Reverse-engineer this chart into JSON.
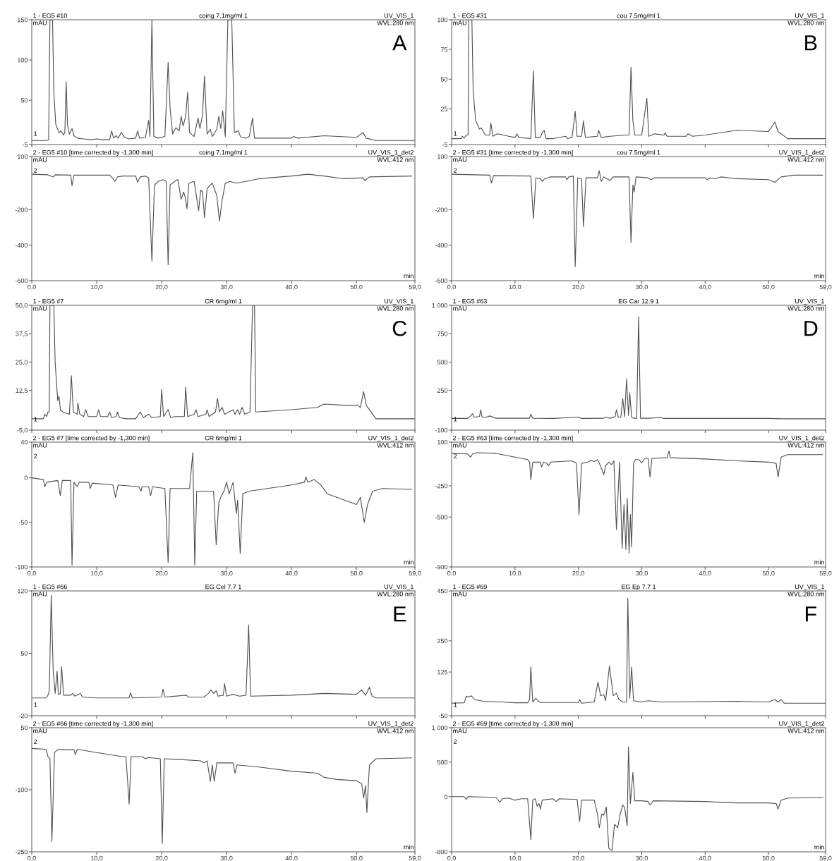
{
  "chart_data": [
    {
      "type": "line",
      "title": "1 - EG5 #10",
      "subtitle": "coing 7.1mg/ml 1",
      "ylabel": "mAU",
      "annotations": [
        "UV_VIS_1",
        "WVL:280 nm",
        "1",
        "A"
      ],
      "tick_labels": "y",
      "xlim": [
        0,
        59
      ],
      "xticks": [
        {
          "value": 0,
          "label": null
        },
        {
          "value": 10,
          "label": null
        },
        {
          "value": 20,
          "label": null
        },
        {
          "value": 30,
          "label": null
        },
        {
          "value": 40,
          "label": null
        },
        {
          "value": 50,
          "label": null
        },
        {
          "value": 59,
          "label": null
        }
      ],
      "ylim": [
        -5,
        150
      ],
      "yticks": [
        -5,
        50,
        100,
        150
      ],
      "series": [
        {
          "color": "#505050",
          "x": [
            0,
            2.3,
            2.6,
            2.8,
            3.2,
            3.4,
            3.7,
            4.2,
            4.5,
            4.9,
            5.1,
            5.3,
            5.5,
            5.8,
            6.2,
            6.5,
            7,
            8,
            9,
            10,
            11,
            12,
            12.3,
            12.6,
            13,
            13.3,
            13.8,
            14.3,
            15,
            16,
            16.3,
            16.6,
            17.5,
            18,
            18.2,
            18.5,
            18.8,
            19.5,
            20.5,
            21,
            21.3,
            21.7,
            22.2,
            22.7,
            23,
            23.3,
            23.7,
            24,
            24.3,
            25,
            25.6,
            25.9,
            26.3,
            26.6,
            27,
            27.5,
            27.8,
            28.5,
            28.8,
            29.1,
            29.4,
            29.8,
            30.2,
            30.8,
            31.2,
            31.8,
            32.2,
            33,
            33.5,
            34,
            34.3,
            36,
            40,
            40.3,
            41,
            45,
            50,
            51,
            51.5,
            53,
            59
          ],
          "values": [
            0,
            0,
            1,
            150,
            150,
            60,
            20,
            10,
            12,
            7,
            10,
            73,
            20,
            8,
            15,
            6,
            3,
            2,
            1,
            2,
            1,
            1,
            12,
            3,
            6,
            3,
            10,
            4,
            2,
            3,
            12,
            3,
            4,
            25,
            5,
            150,
            5,
            3,
            5,
            97,
            40,
            8,
            16,
            12,
            30,
            18,
            30,
            60,
            10,
            5,
            28,
            15,
            32,
            80,
            8,
            14,
            5,
            14,
            30,
            15,
            37,
            5,
            150,
            150,
            10,
            12,
            4,
            3,
            5,
            28,
            3,
            3,
            3,
            5,
            3,
            6,
            4,
            10,
            3,
            0,
            0
          ]
        }
      ]
    },
    {
      "type": "line",
      "title": "2 - EG5 #10 [time corrected by -1,300 min]",
      "subtitle": "coing 7.1mg/ml 1",
      "ylabel": "mAU",
      "xlabel": "min",
      "annotations": [
        "UV_VIS_1_det2",
        "WVL:412 nm",
        "2"
      ],
      "xlim": [
        0,
        59
      ],
      "xticks": [
        {
          "value": 0,
          "label": "0,0"
        },
        {
          "value": 10,
          "label": "10,0"
        },
        {
          "value": 20,
          "label": "20,0"
        },
        {
          "value": 30,
          "label": "30,0"
        },
        {
          "value": 40,
          "label": "40,0"
        },
        {
          "value": 50,
          "label": "50,0"
        },
        {
          "value": 59,
          "label": "59,0"
        }
      ],
      "ylim": [
        -600,
        100
      ],
      "yticks": [
        -600,
        -400,
        -200,
        100
      ],
      "series": [
        {
          "color": "#505050",
          "x": [
            0,
            2.5,
            3.3,
            3.6,
            6,
            6.2,
            6.5,
            12,
            12.5,
            12.8,
            13.2,
            14,
            16,
            16.3,
            16.7,
            17.5,
            18,
            18.5,
            18.9,
            19.5,
            20.2,
            20.7,
            21,
            21.3,
            22,
            22.5,
            23,
            23.4,
            23.6,
            23.9,
            24.2,
            25,
            25.7,
            26,
            26.3,
            26.6,
            27,
            27.8,
            28.5,
            28.9,
            29.3,
            29.8,
            30.5,
            31.5,
            33,
            35,
            40,
            42.5,
            45,
            48,
            51,
            51.3,
            52,
            58.5
          ],
          "values": [
            0,
            -3,
            -15,
            -3,
            -5,
            -65,
            -5,
            -5,
            -25,
            -40,
            -15,
            -10,
            -10,
            -45,
            -15,
            -10,
            -20,
            -490,
            -60,
            -40,
            -30,
            -40,
            -510,
            -60,
            -40,
            -30,
            -140,
            -100,
            -125,
            -195,
            -50,
            -40,
            -205,
            -90,
            -100,
            -245,
            -80,
            -50,
            -120,
            -265,
            -150,
            -50,
            -40,
            -50,
            -40,
            -25,
            -10,
            0,
            -10,
            -25,
            -20,
            -35,
            -15,
            -10
          ]
        }
      ]
    },
    {
      "type": "line",
      "title": "1 - EG5 #31",
      "subtitle": "cou 7.5mg/ml 1",
      "ylabel": "mAU",
      "annotations": [
        "UV_VIS_1",
        "WVL:280 nm",
        "1",
        "B"
      ],
      "tick_labels": "y",
      "xlim": [
        0,
        59
      ],
      "xticks": [
        {
          "value": 0,
          "label": null
        },
        {
          "value": 10,
          "label": null
        },
        {
          "value": 20,
          "label": null
        },
        {
          "value": 30,
          "label": null
        },
        {
          "value": 40,
          "label": null
        },
        {
          "value": 50,
          "label": null
        },
        {
          "value": 59,
          "label": null
        }
      ],
      "ylim": [
        -5,
        100
      ],
      "yticks": [
        -5,
        25,
        50,
        75,
        100
      ],
      "series": [
        {
          "color": "#505050",
          "x": [
            0,
            1.5,
            1.7,
            2,
            2.3,
            2.6,
            2.7,
            3.2,
            3.4,
            3.8,
            4.4,
            4.7,
            5.3,
            6,
            6.2,
            6.5,
            7.2,
            8.2,
            9,
            10,
            10.3,
            10.6,
            12.5,
            12.9,
            13.2,
            14,
            14.3,
            14.6,
            14.9,
            16,
            18,
            18.3,
            19,
            19.5,
            19.8,
            20.5,
            20.8,
            21.1,
            23,
            23.2,
            23.6,
            25,
            27.5,
            28,
            28.3,
            28.6,
            28.9,
            30,
            30.8,
            31.1,
            32,
            33.5,
            33.7,
            34,
            37,
            37.3,
            38,
            40,
            45,
            50,
            51,
            51.5,
            53,
            59
          ],
          "values": [
            0,
            0,
            2,
            0.5,
            3,
            3,
            100,
            100,
            40,
            15,
            8,
            9,
            3,
            3,
            13,
            2,
            4,
            3,
            2,
            1,
            4,
            1,
            0,
            57,
            1,
            1,
            5,
            7,
            0,
            0,
            2,
            0,
            1,
            23,
            2,
            2,
            15,
            1,
            2,
            7,
            1,
            2,
            3,
            3,
            60,
            15,
            3,
            3,
            34,
            2,
            4,
            3,
            5,
            2,
            2,
            4,
            2,
            3,
            7,
            6,
            14,
            6,
            0,
            0
          ]
        }
      ]
    },
    {
      "type": "line",
      "title": "2 - EG5 #31 [time corrected by -1,300 min]",
      "subtitle": "cou 7.5mg/ml 1",
      "ylabel": "mAU",
      "xlabel": "min",
      "annotations": [
        "UV_VIS_1_det2",
        "WVL:412 nm",
        "2"
      ],
      "xlim": [
        0,
        59
      ],
      "xticks": [
        {
          "value": 0,
          "label": "0,0"
        },
        {
          "value": 10,
          "label": "10,0"
        },
        {
          "value": 20,
          "label": "20,0"
        },
        {
          "value": 30,
          "label": "30,0"
        },
        {
          "value": 40,
          "label": "40,0"
        },
        {
          "value": 50,
          "label": "50,0"
        },
        {
          "value": 59,
          "label": "59,0"
        }
      ],
      "ylim": [
        -600,
        100
      ],
      "yticks": [
        -600,
        -400,
        -200,
        100
      ],
      "series": [
        {
          "color": "#505050",
          "x": [
            0,
            6,
            6.3,
            6.6,
            12.5,
            12.9,
            13.3,
            14,
            14.3,
            14.7,
            15.5,
            18,
            18.2,
            18.5,
            19.2,
            19.5,
            19.9,
            20.5,
            20.8,
            21.2,
            23,
            23.3,
            23.6,
            24,
            25,
            25.5,
            28,
            28.3,
            28.6,
            28.8,
            29.1,
            31,
            31.5,
            32,
            40,
            40.3,
            40.8,
            41.5,
            42.5,
            45,
            50,
            51,
            52,
            54,
            58.5
          ],
          "values": [
            0,
            -5,
            -50,
            -8,
            -10,
            -250,
            -20,
            -25,
            -40,
            -25,
            -15,
            -15,
            -30,
            -15,
            -10,
            -520,
            -20,
            -25,
            -295,
            -20,
            -20,
            20,
            -40,
            -15,
            -35,
            -15,
            -15,
            -385,
            -60,
            -100,
            -15,
            -20,
            -30,
            -20,
            -20,
            -30,
            -20,
            -25,
            -15,
            -25,
            -30,
            -45,
            -15,
            -5,
            -5
          ]
        }
      ]
    },
    {
      "type": "line",
      "title": "1 - EG5 #7",
      "subtitle": "CR 6mg/ml 1",
      "ylabel": "mAU",
      "annotations": [
        "UV_VIS_1",
        "WVL:280 nm",
        "1",
        "C"
      ],
      "tick_labels": "y",
      "xlim": [
        0,
        59
      ],
      "xticks": [
        {
          "value": 0,
          "label": null
        },
        {
          "value": 10,
          "label": null
        },
        {
          "value": 20,
          "label": null
        },
        {
          "value": 30,
          "label": null
        },
        {
          "value": 40,
          "label": null
        },
        {
          "value": 50,
          "label": null
        },
        {
          "value": 59,
          "label": null
        }
      ],
      "ylim": [
        -5,
        50
      ],
      "yticks": [
        {
          "value": -5,
          "label": "-5,0"
        },
        {
          "value": 12.5,
          "label": "12,5"
        },
        {
          "value": 25,
          "label": "25,0"
        },
        {
          "value": 37.5,
          "label": "37,5"
        },
        {
          "value": 50,
          "label": "50,0"
        }
      ],
      "series": [
        {
          "color": "#505050",
          "x": [
            0,
            1.8,
            2,
            2.3,
            2.5,
            2.7,
            2.8,
            3.4,
            3.6,
            4,
            4.2,
            4.4,
            4.8,
            5.8,
            6.1,
            6.4,
            7,
            7.1,
            7.4,
            8,
            8.3,
            8.7,
            10,
            10.3,
            10.6,
            11.7,
            12,
            12.3,
            13,
            13.2,
            13.5,
            14.5,
            16,
            16.7,
            17.2,
            18,
            18.5,
            19.8,
            20,
            20.3,
            21,
            21.4,
            22,
            23.5,
            23.7,
            24,
            25,
            25.3,
            25.6,
            26.8,
            27,
            27.3,
            28.3,
            28.6,
            28.9,
            29.3,
            29.7,
            31,
            31.3,
            31.7,
            32,
            32.4,
            32.8,
            33.6,
            34,
            34.3,
            34.5,
            40,
            44,
            45,
            48,
            50.2,
            50.6,
            51.1,
            51.5,
            53,
            59
          ],
          "values": [
            0,
            0,
            2,
            1,
            3,
            3,
            50,
            50,
            25,
            8,
            10,
            4,
            3,
            2,
            19,
            3,
            2,
            7,
            2,
            1,
            4,
            1,
            1,
            4,
            1,
            1,
            3,
            0.5,
            1,
            3,
            0.5,
            0,
            0,
            3,
            0.5,
            2,
            0.5,
            1,
            13,
            1,
            4,
            0.5,
            1,
            1,
            14,
            1,
            2,
            4,
            1,
            2,
            4,
            1,
            3,
            9,
            3,
            5,
            2,
            4,
            2,
            4,
            2,
            5,
            2,
            3,
            50,
            50,
            3,
            4,
            5,
            6.5,
            6,
            6,
            5,
            12,
            6,
            0,
            0
          ]
        }
      ]
    },
    {
      "type": "line",
      "title": "2 - EG5 #7 [time corrected by -1,300 min]",
      "subtitle": "CR 6mg/ml 1",
      "ylabel": "mAU",
      "xlabel": "min",
      "annotations": [
        "UV_VIS_1_det2",
        "WVL:412 nm",
        "2"
      ],
      "xlim": [
        0,
        59
      ],
      "xticks": [
        {
          "value": 0,
          "label": "0,0"
        },
        {
          "value": 10,
          "label": "10,0"
        },
        {
          "value": 20,
          "label": "20,0"
        },
        {
          "value": 30,
          "label": "30,0"
        },
        {
          "value": 40,
          "label": "40,0"
        },
        {
          "value": 50,
          "label": "50,0"
        },
        {
          "value": 59,
          "label": "59,0"
        }
      ],
      "ylim": [
        -100,
        40
      ],
      "yticks": [
        -100,
        -50,
        0,
        40
      ],
      "series": [
        {
          "color": "#505050",
          "x": [
            0,
            1.8,
            2,
            2.3,
            4,
            4.4,
            4.7,
            6,
            6.2,
            6.5,
            7,
            7.3,
            8.8,
            9,
            9.3,
            12.5,
            12.9,
            13.3,
            16.5,
            16.8,
            17,
            18,
            18.3,
            18.6,
            20.5,
            21,
            21.3,
            24.3,
            24.8,
            25.1,
            25.4,
            28,
            28.4,
            28.8,
            29.2,
            29.6,
            30,
            30.4,
            31,
            31.5,
            31.7,
            32.1,
            32.5,
            33.5,
            40,
            42,
            42.2,
            42.5,
            43.5,
            44.5,
            45.5,
            50,
            50.6,
            51.2,
            51.7,
            52.5,
            54,
            58.5
          ],
          "values": [
            0,
            -2,
            -10,
            -5,
            -3,
            -20,
            -3,
            -3,
            -98,
            -5,
            -10,
            -5,
            -5,
            -12,
            -6,
            -8,
            -22,
            -8,
            -10,
            -15,
            -10,
            -10,
            -20,
            -10,
            -12,
            -95,
            -12,
            -12,
            28,
            -98,
            -15,
            -15,
            -75,
            -28,
            -20,
            -15,
            -5,
            -18,
            -5,
            -40,
            -25,
            -85,
            -18,
            -15,
            -8,
            -5,
            1,
            -5,
            -2,
            -8,
            -18,
            -30,
            -22,
            -50,
            -30,
            -15,
            -12,
            -13
          ]
        }
      ]
    },
    {
      "type": "line",
      "title": "1 - EG5 #63",
      "subtitle": "EG Car 12.9 1",
      "ylabel": "mAU",
      "annotations": [
        "UV_VIS_1",
        "WVL:280 nm",
        "1",
        "D"
      ],
      "tick_labels": "y",
      "xlim": [
        0,
        59
      ],
      "xticks": [
        {
          "value": 0,
          "label": null
        },
        {
          "value": 10,
          "label": null
        },
        {
          "value": 20,
          "label": null
        },
        {
          "value": 30,
          "label": null
        },
        {
          "value": 40,
          "label": null
        },
        {
          "value": 50,
          "label": null
        },
        {
          "value": 59,
          "label": null
        }
      ],
      "ylim": [
        -100,
        1000
      ],
      "yticks": [
        -100,
        250,
        500,
        750,
        {
          "value": 1000,
          "label": "1 000"
        }
      ],
      "series": [
        {
          "color": "#505050",
          "x": [
            0,
            2.5,
            3,
            3.3,
            3.5,
            4.4,
            4.6,
            4.8,
            5.5,
            6,
            7,
            12.3,
            12.5,
            12.8,
            16,
            20,
            20.5,
            24,
            24.3,
            25,
            25.8,
            26,
            26.3,
            26.7,
            27,
            27.3,
            27.6,
            27.9,
            28.1,
            28.4,
            28.8,
            29.2,
            29.5,
            29.8,
            31,
            33,
            33.5,
            50,
            52,
            59
          ],
          "values": [
            3,
            3,
            25,
            45,
            15,
            20,
            80,
            15,
            15,
            25,
            5,
            5,
            40,
            5,
            3,
            15,
            3,
            5,
            15,
            5,
            20,
            80,
            15,
            15,
            180,
            20,
            350,
            30,
            230,
            10,
            5,
            5,
            900,
            5,
            5,
            10,
            3,
            3,
            0,
            0
          ]
        }
      ]
    },
    {
      "type": "line",
      "title": "2 - EG5 #63 [time corrected by -1,300 min]",
      "ylabel": "mAU",
      "xlabel": "min",
      "annotations": [
        "UV_VIS_1_det2",
        "WVL:412 nm",
        "2"
      ],
      "xlim": [
        0,
        59
      ],
      "xticks": [
        {
          "value": 0,
          "label": "0,0"
        },
        {
          "value": 10,
          "label": "10,0"
        },
        {
          "value": 20,
          "label": "20,0"
        },
        {
          "value": 30,
          "label": "30,0"
        },
        {
          "value": 40,
          "label": "40,0"
        },
        {
          "value": 50,
          "label": "50,0"
        },
        {
          "value": 59,
          "label": "59,0"
        }
      ],
      "ylim": [
        -900,
        100
      ],
      "yticks": [
        -900,
        -500,
        -250,
        100
      ],
      "series": [
        {
          "color": "#505050",
          "x": [
            0,
            2.5,
            3,
            3.3,
            4,
            7,
            10,
            12,
            12.3,
            12.5,
            12.8,
            14,
            14.2,
            14.5,
            15,
            15.3,
            15.6,
            19,
            19.7,
            20.1,
            20.5,
            21.5,
            22,
            22.5,
            23,
            23.5,
            24,
            24.3,
            24.8,
            25.2,
            25.6,
            26,
            26.5,
            26.9,
            27.2,
            27.5,
            27.7,
            28,
            28.2,
            28.4,
            28.7,
            29,
            29.5,
            30,
            30.5,
            31,
            31.3,
            31.6,
            34,
            34.3,
            34.5,
            40,
            45,
            50,
            51.2,
            51.5,
            52,
            53,
            58.5
          ],
          "values": [
            10,
            5,
            -20,
            5,
            15,
            10,
            -20,
            -40,
            -60,
            -200,
            -60,
            -60,
            -100,
            -60,
            -70,
            -90,
            -60,
            -50,
            -70,
            -480,
            -70,
            -60,
            -45,
            -55,
            -40,
            -90,
            -160,
            -90,
            -60,
            -80,
            -50,
            -600,
            -60,
            -750,
            -400,
            -760,
            -350,
            -790,
            -480,
            -740,
            -70,
            -40,
            -40,
            -65,
            -30,
            -30,
            -180,
            -30,
            -25,
            30,
            -25,
            -35,
            -50,
            -60,
            -70,
            -180,
            -20,
            0,
            0
          ]
        }
      ]
    },
    {
      "type": "line",
      "title": "1 - EG5 #66",
      "subtitle": "EG Cel 7.7 1",
      "ylabel": "mAU",
      "annotations": [
        "UV_VIS_1",
        "WVL:280 nm",
        "1",
        "E"
      ],
      "tick_labels": "y",
      "xlim": [
        0,
        59
      ],
      "xticks": [
        {
          "value": 0,
          "label": null
        },
        {
          "value": 10,
          "label": null
        },
        {
          "value": 20,
          "label": null
        },
        {
          "value": 30,
          "label": null
        },
        {
          "value": 40,
          "label": null
        },
        {
          "value": 50,
          "label": null
        },
        {
          "value": 59,
          "label": null
        }
      ],
      "ylim": [
        -20,
        120
      ],
      "yticks": [
        -20,
        50,
        120
      ],
      "series": [
        {
          "color": "#505050",
          "x": [
            0,
            2.2,
            2.5,
            2.7,
            3,
            3.3,
            3.6,
            3.9,
            4.1,
            4.4,
            4.6,
            4.9,
            6,
            6.3,
            6.6,
            7.5,
            7.8,
            10,
            15,
            15.2,
            15.5,
            20,
            20.2,
            20.5,
            23.8,
            24.1,
            26.5,
            27.2,
            27.6,
            28,
            28.4,
            28.7,
            29.5,
            29.7,
            30,
            31,
            32,
            33,
            33.4,
            33.7,
            40,
            45,
            50,
            50.8,
            51.4,
            52,
            52.4,
            53,
            59
          ],
          "values": [
            0,
            0,
            3,
            8,
            115,
            30,
            5,
            30,
            4,
            5,
            35,
            3,
            3,
            5,
            2,
            5,
            1,
            0,
            0,
            6,
            0,
            1,
            10,
            1,
            3,
            1,
            1,
            5,
            9,
            5,
            8,
            2,
            3,
            16,
            2,
            4,
            2,
            3,
            82,
            2,
            3,
            5,
            4,
            9,
            3,
            12,
            2,
            0,
            0
          ]
        }
      ]
    },
    {
      "type": "line",
      "title": "2 - EG5 #66 [time corrected by -1,300 min]",
      "ylabel": "mAU",
      "xlabel": "min",
      "annotations": [
        "UV_VIS_1_det2",
        "WVL:412 nm",
        "2"
      ],
      "xlim": [
        0,
        59
      ],
      "xticks": [
        {
          "value": 0,
          "label": "0,0"
        },
        {
          "value": 10,
          "label": "10,0"
        },
        {
          "value": 20,
          "label": "20,0"
        },
        {
          "value": 30,
          "label": "30,0"
        },
        {
          "value": 40,
          "label": "40,0"
        },
        {
          "value": 50,
          "label": "50,0"
        },
        {
          "value": 59,
          "label": "59,0"
        }
      ],
      "ylim": [
        -250,
        50
      ],
      "yticks": [
        -250,
        -100,
        50
      ],
      "series": [
        {
          "color": "#505050",
          "x": [
            0,
            2.2,
            2.5,
            2.8,
            3.1,
            3.5,
            4,
            6.5,
            6.7,
            7,
            10,
            14,
            14.5,
            15,
            15.3,
            17,
            17.5,
            18,
            19.8,
            20.1,
            20.4,
            23,
            26,
            26.5,
            27,
            27.5,
            27.8,
            28.1,
            28.5,
            31,
            31.3,
            31.6,
            35,
            40,
            44,
            45,
            47,
            50,
            50.8,
            51.1,
            51.4,
            51.6,
            52,
            53,
            58.5
          ],
          "values": [
            0,
            -2,
            -20,
            -25,
            -225,
            -10,
            -3,
            -3,
            -15,
            -2,
            -10,
            -20,
            -20,
            -135,
            -20,
            -20,
            -25,
            -22,
            -25,
            -230,
            -25,
            -27,
            -30,
            -35,
            -30,
            -80,
            -40,
            -80,
            -35,
            -35,
            -60,
            -40,
            -45,
            -55,
            -60,
            -70,
            -75,
            -78,
            -85,
            -120,
            -90,
            -155,
            -40,
            -25,
            -23
          ]
        }
      ]
    },
    {
      "type": "line",
      "title": "1 - EG5 #69",
      "subtitle": "EG Ep 7.7 1",
      "ylabel": "mAU",
      "annotations": [
        "UV_VIS_1",
        "WVL:280 nm",
        "1",
        "F"
      ],
      "tick_labels": "y",
      "xlim": [
        0,
        59
      ],
      "xticks": [
        {
          "value": 0,
          "label": null
        },
        {
          "value": 10,
          "label": null
        },
        {
          "value": 20,
          "label": null
        },
        {
          "value": 30,
          "label": null
        },
        {
          "value": 40,
          "label": null
        },
        {
          "value": 50,
          "label": null
        },
        {
          "value": 59,
          "label": null
        }
      ],
      "ylim": [
        -50,
        450
      ],
      "yticks": [
        -50,
        125,
        250,
        450
      ],
      "series": [
        {
          "color": "#505050",
          "x": [
            0,
            2,
            2.3,
            2.7,
            3.1,
            3.6,
            5,
            8,
            10,
            12,
            12.3,
            12.5,
            12.8,
            13.3,
            13.6,
            14,
            20,
            20.2,
            20.5,
            22.5,
            23.1,
            23.5,
            24,
            24.3,
            24.9,
            25.5,
            26,
            26.4,
            27,
            27.6,
            27.8,
            28.1,
            28.4,
            28.7,
            30,
            31,
            33,
            45,
            50,
            51,
            51.5,
            52,
            52.5,
            59
          ],
          "values": [
            0,
            2,
            28,
            25,
            30,
            15,
            8,
            5,
            2,
            2,
            15,
            145,
            5,
            20,
            10,
            3,
            3,
            15,
            0,
            5,
            85,
            30,
            35,
            10,
            150,
            30,
            40,
            15,
            5,
            5,
            420,
            20,
            145,
            10,
            5,
            10,
            5,
            8,
            5,
            15,
            5,
            15,
            0,
            0
          ]
        }
      ]
    },
    {
      "type": "line",
      "title": "2 - EG5 #69 [time corrected by -1,300 min]",
      "ylabel": "mAU",
      "xlabel": "min",
      "annotations": [
        "UV_VIS_1_det2",
        "WVL:412 nm",
        "2"
      ],
      "xlim": [
        0,
        59
      ],
      "xticks": [
        {
          "value": 0,
          "label": "0,0"
        },
        {
          "value": 10,
          "label": "10,0"
        },
        {
          "value": 20,
          "label": "20,0"
        },
        {
          "value": 30,
          "label": "30,0"
        },
        {
          "value": 40,
          "label": "40,0"
        },
        {
          "value": 50,
          "label": "50,0"
        },
        {
          "value": 59,
          "label": "59,0"
        }
      ],
      "ylim": [
        -800,
        1000
      ],
      "yticks": [
        -800,
        0,
        500,
        {
          "value": 1000,
          "label": "1 000"
        }
      ],
      "series": [
        {
          "color": "#505050",
          "x": [
            0,
            2,
            2.3,
            2.6,
            7,
            7.6,
            8,
            9,
            10,
            11,
            12,
            12.5,
            12.8,
            13.2,
            13.5,
            13.8,
            14,
            14.3,
            16,
            16.5,
            17,
            19.8,
            20.2,
            20.5,
            22.5,
            23,
            23.3,
            23.7,
            24,
            24.4,
            24.8,
            25.3,
            25.7,
            26.2,
            26.6,
            27,
            27.3,
            27.7,
            27.9,
            28.2,
            28.6,
            28.9,
            30,
            31,
            31.3,
            31.8,
            40,
            45,
            50,
            51.2,
            51.5,
            52,
            53,
            58.5
          ],
          "values": [
            0,
            0,
            -40,
            0,
            -10,
            -80,
            -30,
            -20,
            -50,
            -30,
            -30,
            -620,
            -50,
            -30,
            -140,
            -100,
            -180,
            -50,
            -30,
            -70,
            -30,
            -40,
            -360,
            -50,
            -50,
            -250,
            -450,
            -250,
            -270,
            -150,
            -750,
            -780,
            -400,
            -450,
            -250,
            -120,
            -160,
            -420,
            720,
            -100,
            350,
            -60,
            -60,
            -70,
            -120,
            -60,
            -70,
            -90,
            -90,
            -100,
            -180,
            -50,
            -20,
            -10
          ]
        }
      ]
    }
  ]
}
